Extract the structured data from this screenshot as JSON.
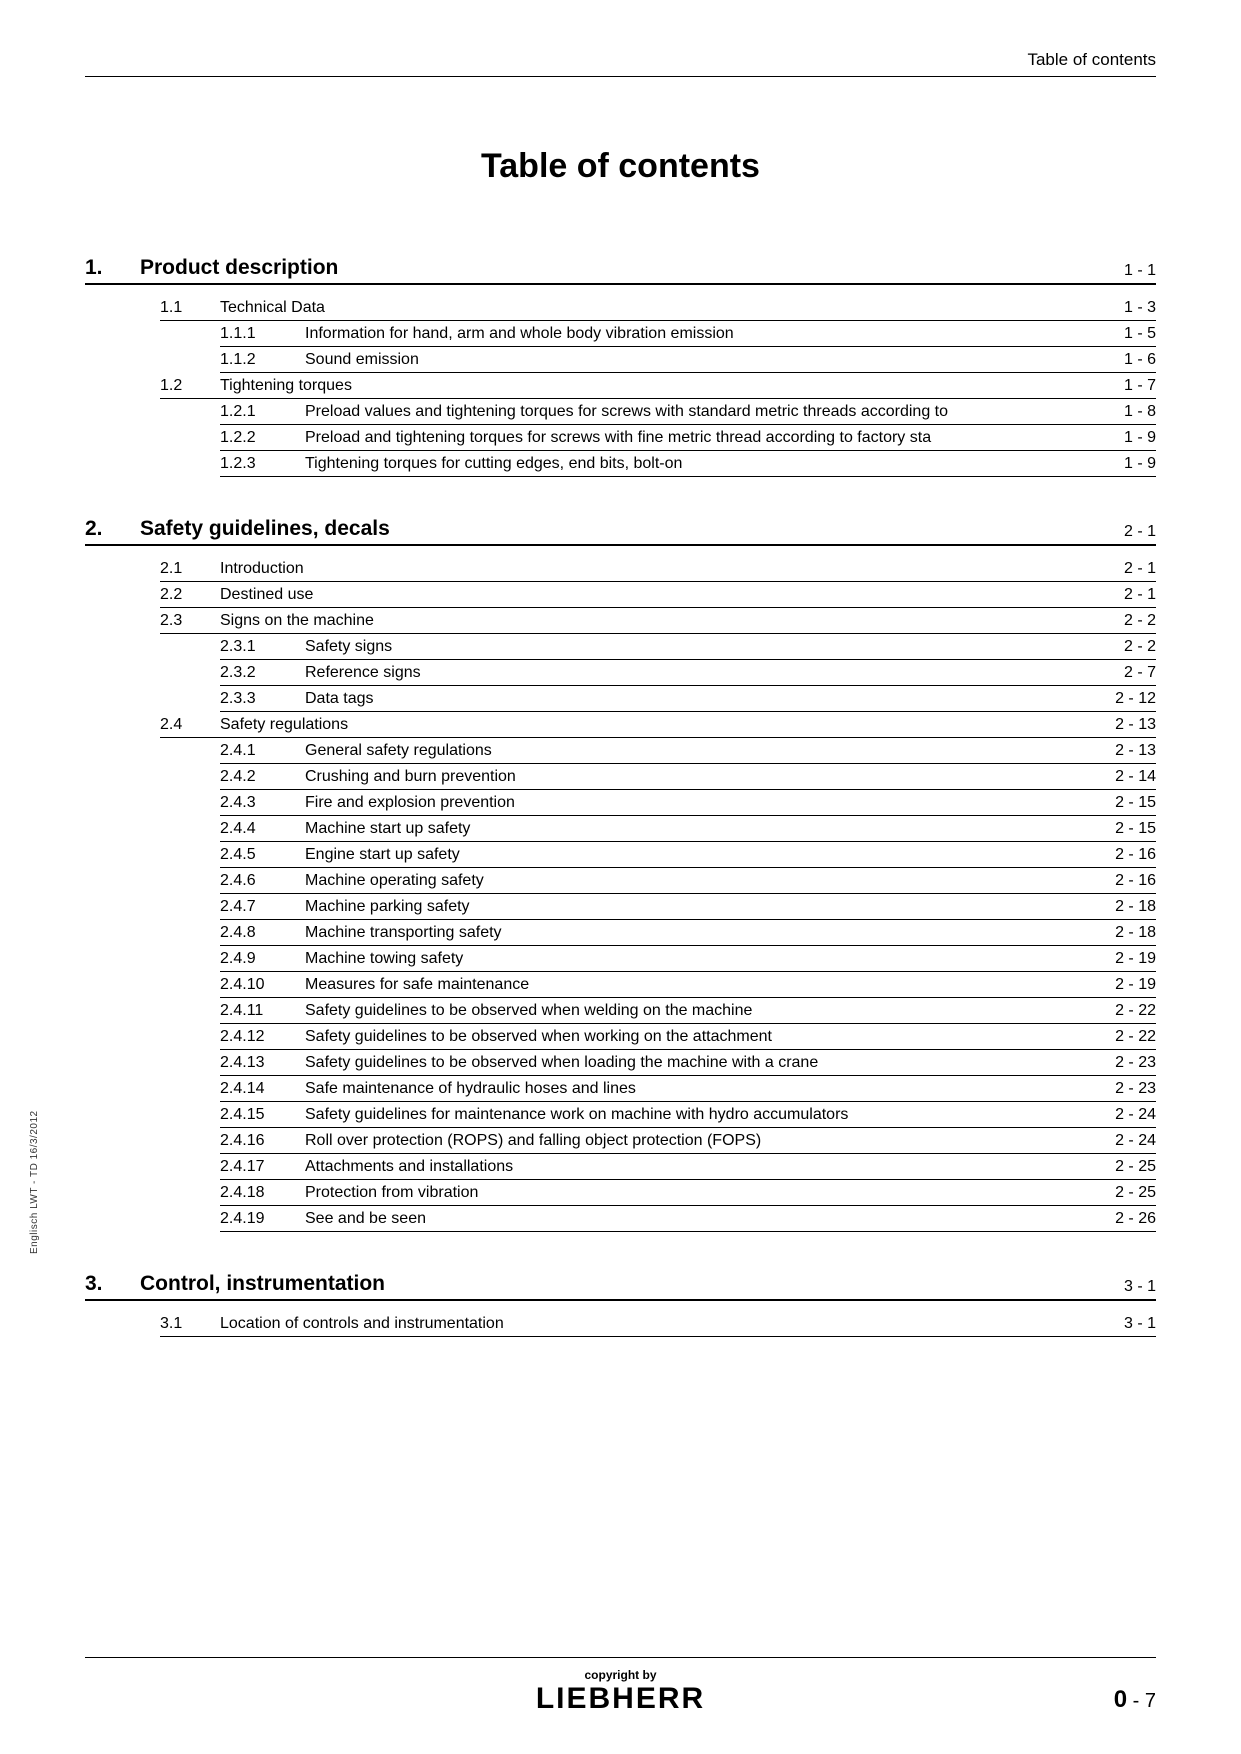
{
  "header": {
    "running_title": "Table of contents"
  },
  "title": "Table of contents",
  "side_text": "Englisch  LWT - TD 16/3/2012",
  "footer": {
    "copyright": "copyright by",
    "brand": "LIEBHERR",
    "page_major": "0",
    "page_sep": " - ",
    "page_minor": "7"
  },
  "chapters": [
    {
      "num": "1.",
      "title": "Product description",
      "page": "1 - 1",
      "sections": [
        {
          "num": "1.1",
          "title": "Technical Data",
          "page": "1 - 3",
          "subs": [
            {
              "num": "1.1.1",
              "title": "Information for hand, arm and whole body vibration emission",
              "page": "1 - 5"
            },
            {
              "num": "1.1.2",
              "title": "Sound emission",
              "page": "1 - 6"
            }
          ]
        },
        {
          "num": "1.2",
          "title": "Tightening torques",
          "page": "1 - 7",
          "subs": [
            {
              "num": "1.2.1",
              "title": "Preload values and tightening torques for screws with standard metric threads according to",
              "page": "1 - 8"
            },
            {
              "num": "1.2.2",
              "title": "Preload and tightening torques for screws with fine metric thread according to factory sta",
              "page": "1 - 9"
            },
            {
              "num": "1.2.3",
              "title": "Tightening torques for cutting edges, end bits, bolt-on",
              "page": "1 - 9"
            }
          ]
        }
      ]
    },
    {
      "num": "2.",
      "title": "Safety guidelines, decals",
      "page": "2 - 1",
      "sections": [
        {
          "num": "2.1",
          "title": "Introduction",
          "page": "2 - 1",
          "subs": []
        },
        {
          "num": "2.2",
          "title": "Destined use",
          "page": "2 - 1",
          "subs": []
        },
        {
          "num": "2.3",
          "title": "Signs on the machine",
          "page": "2 - 2",
          "subs": [
            {
              "num": "2.3.1",
              "title": "Safety signs",
              "page": "2 - 2"
            },
            {
              "num": "2.3.2",
              "title": "Reference signs",
              "page": "2 - 7"
            },
            {
              "num": "2.3.3",
              "title": "Data tags",
              "page": "2 - 12"
            }
          ]
        },
        {
          "num": "2.4",
          "title": "Safety regulations",
          "page": "2 - 13",
          "subs": [
            {
              "num": "2.4.1",
              "title": "General safety regulations",
              "page": "2 - 13"
            },
            {
              "num": "2.4.2",
              "title": "Crushing and burn prevention",
              "page": "2 - 14"
            },
            {
              "num": "2.4.3",
              "title": "Fire and explosion prevention",
              "page": "2 - 15"
            },
            {
              "num": "2.4.4",
              "title": "Machine start up safety",
              "page": "2 - 15"
            },
            {
              "num": "2.4.5",
              "title": "Engine start up safety",
              "page": "2 - 16"
            },
            {
              "num": "2.4.6",
              "title": "Machine operating safety",
              "page": "2 - 16"
            },
            {
              "num": "2.4.7",
              "title": "Machine parking safety",
              "page": "2 - 18"
            },
            {
              "num": "2.4.8",
              "title": "Machine transporting safety",
              "page": "2 - 18"
            },
            {
              "num": "2.4.9",
              "title": "Machine towing safety",
              "page": "2 - 19"
            },
            {
              "num": "2.4.10",
              "title": "Measures for safe maintenance",
              "page": "2 - 19"
            },
            {
              "num": "2.4.11",
              "title": "Safety guidelines to be observed when welding on the machine",
              "page": "2 - 22"
            },
            {
              "num": "2.4.12",
              "title": "Safety guidelines to be observed when working on the attachment",
              "page": "2 - 22"
            },
            {
              "num": "2.4.13",
              "title": "Safety guidelines to be observed when loading the machine with a crane",
              "page": "2 - 23"
            },
            {
              "num": "2.4.14",
              "title": "Safe maintenance of hydraulic hoses and lines",
              "page": "2 - 23"
            },
            {
              "num": "2.4.15",
              "title": "Safety guidelines for maintenance work on machine with hydro accumulators",
              "page": "2 - 24"
            },
            {
              "num": "2.4.16",
              "title": "Roll over protection (ROPS) and falling object protection (FOPS)",
              "page": "2 - 24"
            },
            {
              "num": "2.4.17",
              "title": "Attachments and installations",
              "page": "2 - 25"
            },
            {
              "num": "2.4.18",
              "title": "Protection from vibration",
              "page": "2 - 25"
            },
            {
              "num": "2.4.19",
              "title": "See and be seen",
              "page": "2 - 26"
            }
          ]
        }
      ]
    },
    {
      "num": "3.",
      "title": "Control, instrumentation",
      "page": "3 - 1",
      "sections": [
        {
          "num": "3.1",
          "title": "Location of controls and instrumentation",
          "page": "3 - 1",
          "subs": []
        }
      ]
    }
  ]
}
